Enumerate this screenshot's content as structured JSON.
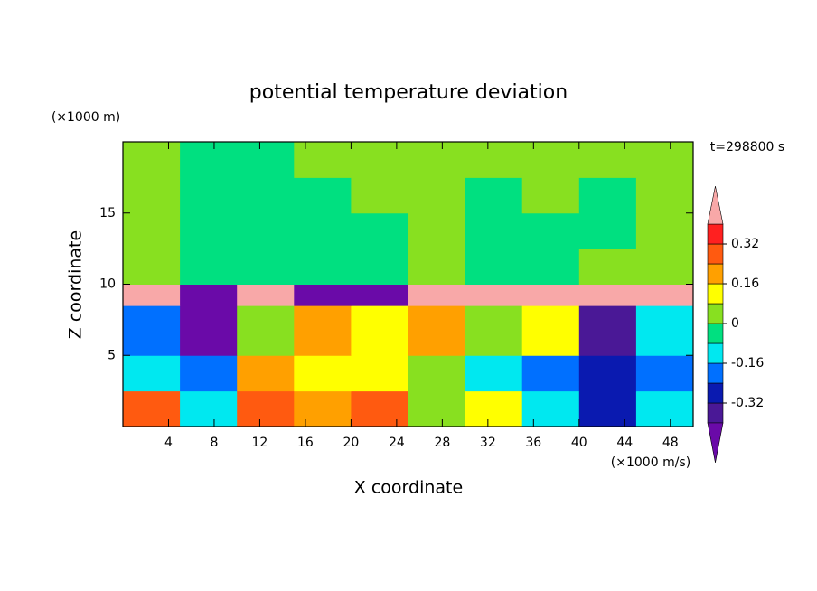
{
  "chart_data": {
    "type": "heatmap",
    "title": "potential temperature deviation",
    "time_label": "t=298800 s",
    "x_label": "X coordinate",
    "y_label": "Z coordinate",
    "x_unit": "(×1000 m/s)",
    "y_unit": "(×1000 m)",
    "xlim": [
      0,
      50
    ],
    "xticks": [
      4,
      8,
      12,
      16,
      20,
      24,
      28,
      32,
      36,
      40,
      44,
      48
    ],
    "ylim": [
      0,
      20
    ],
    "yticks": [
      5,
      10,
      15
    ],
    "x_edges": [
      0,
      5,
      10,
      15,
      20,
      25,
      30,
      35,
      40,
      45,
      50
    ],
    "y_edges": [
      0,
      2.5,
      5,
      8.5,
      10,
      12.5,
      15,
      17.5,
      20
    ],
    "z": [
      [
        0.3,
        -0.1,
        0.25,
        0.2,
        0.3,
        0.04,
        0.1,
        -0.12,
        -0.3,
        -0.1
      ],
      [
        -0.12,
        -0.2,
        0.2,
        0.12,
        0.12,
        0.04,
        -0.12,
        -0.2,
        -0.3,
        -0.2
      ],
      [
        -0.2,
        -0.5,
        0.04,
        0.2,
        0.12,
        0.2,
        0.04,
        0.12,
        -0.4,
        -0.12
      ],
      [
        0.5,
        -0.5,
        0.5,
        -0.5,
        -0.5,
        0.5,
        0.5,
        0.5,
        0.5,
        0.5
      ],
      [
        0.04,
        -0.04,
        -0.04,
        -0.04,
        -0.04,
        0.04,
        -0.04,
        -0.04,
        0.04,
        0.04
      ],
      [
        0.04,
        -0.04,
        -0.04,
        -0.04,
        -0.04,
        0.04,
        -0.04,
        -0.04,
        -0.04,
        0.04
      ],
      [
        0.04,
        -0.04,
        -0.04,
        -0.04,
        0.04,
        0.04,
        -0.04,
        0.04,
        -0.04,
        0.04
      ],
      [
        0.04,
        -0.04,
        -0.04,
        0.04,
        0.04,
        0.04,
        0.04,
        0.04,
        0.04,
        0.04
      ]
    ],
    "levels": [
      -0.4,
      -0.32,
      -0.24,
      -0.16,
      -0.08,
      0,
      0.08,
      0.16,
      0.24,
      0.32,
      0.4
    ],
    "colors": [
      "#6a0aa8",
      "#4a1896",
      "#0a1ab0",
      "#0070ff",
      "#00e8f0",
      "#00e080",
      "#88e020",
      "#ffff00",
      "#ffa000",
      "#ff5a10",
      "#ff2020",
      "#f8a8a8"
    ],
    "colorbar_ticks": [
      -0.32,
      -0.16,
      0,
      0.16,
      0.32
    ]
  }
}
